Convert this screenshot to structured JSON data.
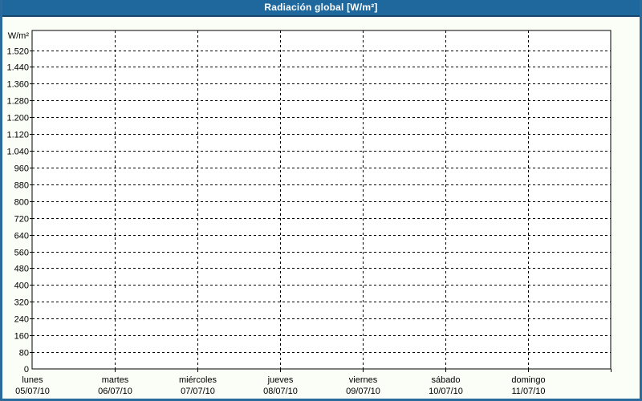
{
  "window": {
    "title": "Radiación global [W/m²]"
  },
  "colors": {
    "titlebar_bg": "#1e689e",
    "titlebar_border": "#14466d",
    "frame_border": "#2a6b9d",
    "page_bg": "#fbfdf7",
    "plot_bg": "#ffffff",
    "grid_line": "#000000",
    "text": "#000000",
    "title_text": "#ffffff"
  },
  "chart_data": {
    "type": "line",
    "title": "Radiación global [W/m²]",
    "xlabel": "",
    "ylabel": "W/m²",
    "ylim": [
      0,
      1520
    ],
    "y_step": 80,
    "grid": "dashed",
    "legend": "none",
    "series": [],
    "note": "empty chart - no data points plotted",
    "y_ticks": [
      {
        "value": 0,
        "label": "0"
      },
      {
        "value": 80,
        "label": "80"
      },
      {
        "value": 160,
        "label": "160"
      },
      {
        "value": 240,
        "label": "240"
      },
      {
        "value": 320,
        "label": "320"
      },
      {
        "value": 400,
        "label": "400"
      },
      {
        "value": 480,
        "label": "480"
      },
      {
        "value": 560,
        "label": "560"
      },
      {
        "value": 640,
        "label": "640"
      },
      {
        "value": 720,
        "label": "720"
      },
      {
        "value": 800,
        "label": "800"
      },
      {
        "value": 880,
        "label": "880"
      },
      {
        "value": 960,
        "label": "960"
      },
      {
        "value": 1040,
        "label": "1.040"
      },
      {
        "value": 1120,
        "label": "1.120"
      },
      {
        "value": 1200,
        "label": "1.200"
      },
      {
        "value": 1280,
        "label": "1.280"
      },
      {
        "value": 1360,
        "label": "1.360"
      },
      {
        "value": 1440,
        "label": "1.440"
      },
      {
        "value": 1520,
        "label": "1.520"
      }
    ],
    "x_ticks": [
      {
        "day": "lunes",
        "date": "05/07/10"
      },
      {
        "day": "martes",
        "date": "06/07/10"
      },
      {
        "day": "miércoles",
        "date": "07/07/10"
      },
      {
        "day": "jueves",
        "date": "08/07/10"
      },
      {
        "day": "viernes",
        "date": "09/07/10"
      },
      {
        "day": "sábado",
        "date": "10/07/10"
      },
      {
        "day": "domingo",
        "date": "11/07/10"
      }
    ]
  }
}
